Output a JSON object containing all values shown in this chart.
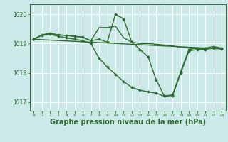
{
  "background_color": "#cce9e9",
  "grid_color": "#ffffff",
  "line_color": "#2d6a2d",
  "marker_color": "#2d6a2d",
  "xlabel": "Graphe pression niveau de la mer (hPa)",
  "xlabel_fontsize": 7,
  "tick_color": "#2d6a2d",
  "ylim": [
    1016.7,
    1020.35
  ],
  "xlim": [
    -0.5,
    23.5
  ],
  "yticks": [
    1017,
    1018,
    1019,
    1020
  ],
  "xticks": [
    0,
    1,
    2,
    3,
    4,
    5,
    6,
    7,
    8,
    9,
    10,
    11,
    12,
    13,
    14,
    15,
    16,
    17,
    18,
    19,
    20,
    21,
    22,
    23
  ],
  "lines": [
    {
      "x": [
        0,
        1,
        2,
        3,
        4,
        5,
        6,
        7,
        8,
        9,
        10,
        11,
        12,
        13,
        14,
        15,
        16,
        17,
        18,
        19,
        20,
        21,
        22,
        23
      ],
      "y": [
        1019.15,
        1019.3,
        1019.35,
        1019.3,
        1019.28,
        1019.25,
        1019.22,
        1019.1,
        1019.15,
        1019.05,
        1020.0,
        1019.85,
        1019.05,
        1018.8,
        1018.55,
        1017.75,
        1017.2,
        1017.25,
        1018.05,
        1018.8,
        1018.85,
        1018.85,
        1018.9,
        1018.85
      ],
      "marker": true,
      "lw": 1.0
    },
    {
      "x": [
        0,
        1,
        2,
        3,
        4,
        5,
        6,
        7,
        8,
        9,
        10,
        11,
        12,
        13,
        14,
        15,
        16,
        17,
        18,
        19,
        20,
        21,
        22,
        23
      ],
      "y": [
        1019.15,
        1019.3,
        1019.35,
        1019.3,
        1019.28,
        1019.25,
        1019.22,
        1019.1,
        1019.55,
        1019.55,
        1019.6,
        1019.2,
        1019.05,
        1019.0,
        1019.0,
        1018.98,
        1018.95,
        1018.92,
        1018.88,
        1018.85,
        1018.83,
        1018.83,
        1018.85,
        1018.82
      ],
      "marker": false,
      "lw": 1.0
    },
    {
      "x": [
        0,
        23
      ],
      "y": [
        1019.15,
        1018.82
      ],
      "marker": false,
      "lw": 1.0
    },
    {
      "x": [
        0,
        1,
        2,
        3,
        4,
        5,
        6,
        7,
        8,
        9,
        10,
        11,
        12,
        13,
        14,
        15,
        16,
        17,
        18,
        19,
        20,
        21,
        22,
        23
      ],
      "y": [
        1019.15,
        1019.28,
        1019.32,
        1019.25,
        1019.2,
        1019.15,
        1019.1,
        1019.0,
        1018.5,
        1018.2,
        1017.95,
        1017.7,
        1017.5,
        1017.4,
        1017.35,
        1017.3,
        1017.2,
        1017.22,
        1018.0,
        1018.75,
        1018.8,
        1018.8,
        1018.85,
        1018.82
      ],
      "marker": true,
      "lw": 1.0
    }
  ],
  "figwidth": 3.2,
  "figheight": 2.0,
  "dpi": 100
}
